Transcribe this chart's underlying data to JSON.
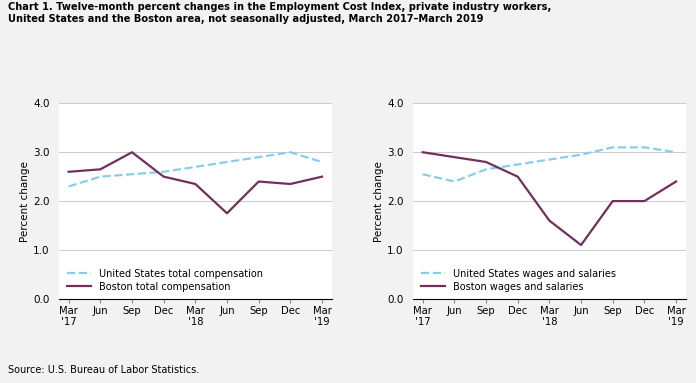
{
  "title_line1": "Chart 1. Twelve-month percent changes in the Employment Cost Index, private industry workers,",
  "title_line2": "United States and the Boston area, not seasonally adjusted, March 2017–March 2019",
  "source": "Source: U.S. Bureau of Labor Statistics.",
  "ylabel": "Percent change",
  "xlabels": [
    "Mar\n'17",
    "Jun",
    "Sep",
    "Dec",
    "Mar\n'18",
    "Jun",
    "Sep",
    "Dec",
    "Mar\n'19"
  ],
  "ylim": [
    0.0,
    4.0
  ],
  "yticks": [
    0.0,
    1.0,
    2.0,
    3.0,
    4.0
  ],
  "left_chart": {
    "us_values": [
      2.3,
      2.5,
      2.55,
      2.6,
      2.7,
      2.8,
      2.9,
      3.0,
      2.8
    ],
    "boston_values": [
      2.6,
      2.65,
      3.0,
      2.5,
      2.35,
      1.75,
      2.4,
      2.35,
      2.5
    ],
    "us_label": "United States total compensation",
    "boston_label": "Boston total compensation"
  },
  "right_chart": {
    "us_values": [
      2.55,
      2.4,
      2.65,
      2.75,
      2.85,
      2.95,
      3.1,
      3.1,
      3.0
    ],
    "boston_values": [
      3.0,
      2.9,
      2.8,
      2.5,
      1.6,
      1.1,
      2.0,
      2.0,
      2.4
    ],
    "us_label": "United States wages and salaries",
    "boston_label": "Boston wages and salaries"
  },
  "us_color": "#87CEEB",
  "boston_color": "#722F5B",
  "us_linestyle": "--",
  "boston_linestyle": "-",
  "linewidth": 1.6,
  "background_color": "#f2f2f2",
  "plot_bg_color": "#ffffff",
  "grid_color": "#cccccc"
}
